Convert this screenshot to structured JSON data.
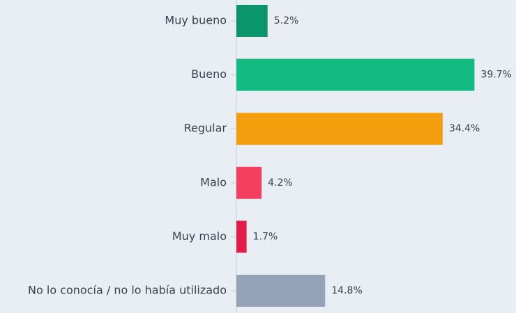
{
  "chart_data": {
    "type": "hbar",
    "categories": [
      "Muy bueno",
      "Bueno",
      "Regular",
      "Malo",
      "Muy malo",
      "No lo conocía / no lo había utilizado"
    ],
    "values": [
      5.2,
      39.7,
      34.4,
      4.2,
      1.7,
      14.8
    ],
    "value_labels": [
      "5.2%",
      "39.7%",
      "34.4%",
      "4.2%",
      "1.7%",
      "14.8%"
    ],
    "colors": [
      "#0b9669",
      "#13bb82",
      "#f39f0d",
      "#f43f5e",
      "#e11d48",
      "#94a3b8"
    ]
  }
}
